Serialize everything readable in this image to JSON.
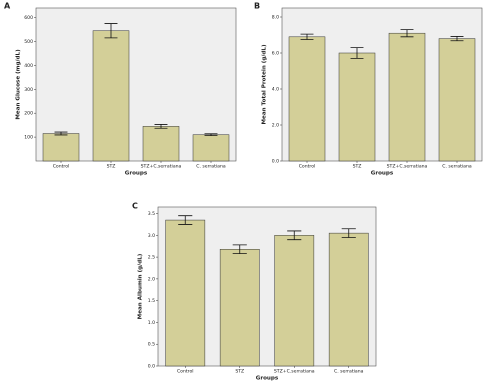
{
  "chart_data": [
    {
      "type": "bar",
      "panel": "A",
      "ylabel": "Mean Glucose (mg/dL)",
      "xlabel": "Groups",
      "categories": [
        "Control",
        "STZ",
        "STZ+C.serratiana",
        "C. serratiana"
      ],
      "values": [
        115,
        545,
        145,
        110
      ],
      "errors": [
        6,
        30,
        8,
        4
      ],
      "color": "#d3cf98",
      "ylim": [
        0,
        640
      ],
      "yticks": [
        100,
        200,
        300,
        400,
        500,
        600
      ]
    },
    {
      "type": "bar",
      "panel": "B",
      "ylabel": "Mean Total Protein (g/dL)",
      "xlabel": "Groups",
      "categories": [
        "Control",
        "STZ",
        "STZ+C.serratiana",
        "C. serratiana"
      ],
      "values": [
        6.9,
        6.0,
        7.1,
        6.8
      ],
      "errors": [
        0.15,
        0.3,
        0.2,
        0.12
      ],
      "color": "#d3cf98",
      "ylim": [
        0,
        8.5
      ],
      "yticks": [
        {
          "value": 0,
          "label": "0.0"
        },
        {
          "value": 2,
          "label": "2.0"
        },
        {
          "value": 4,
          "label": "4.0"
        },
        {
          "value": 6,
          "label": "6.0"
        },
        {
          "value": 8,
          "label": "8.0"
        }
      ]
    },
    {
      "type": "bar",
      "panel": "C",
      "ylabel": "Mean Albumin (g/dL)",
      "xlabel": "Groups",
      "categories": [
        "Control",
        "STZ",
        "STZ+C.serratiana",
        "C. serratiana"
      ],
      "values": [
        3.35,
        2.68,
        3.0,
        3.05
      ],
      "errors": [
        0.1,
        0.1,
        0.1,
        0.1
      ],
      "color": "#d3cf98",
      "ylim": [
        0,
        3.65
      ],
      "yticks": [
        {
          "value": 0,
          "label": "0.0"
        },
        {
          "value": 0.5,
          "label": "0.5"
        },
        {
          "value": 1,
          "label": "1.0"
        },
        {
          "value": 1.5,
          "label": "1.5"
        },
        {
          "value": 2,
          "label": "2.0"
        },
        {
          "value": 2.5,
          "label": "2.5"
        },
        {
          "value": 3,
          "label": "3.0"
        },
        {
          "value": 3.5,
          "label": "3.5"
        }
      ]
    }
  ]
}
